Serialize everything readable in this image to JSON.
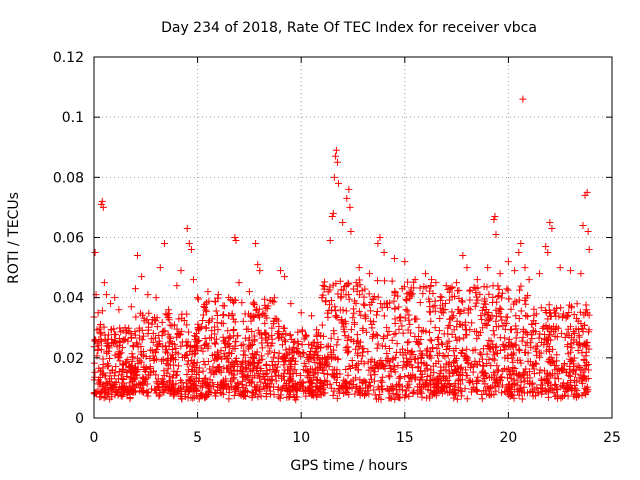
{
  "chart_data": {
    "type": "scatter",
    "title": "Day 234 of 2018, Rate Of TEC Index for receiver vbca",
    "xlabel": "GPS time / hours",
    "ylabel": "ROTI / TECUs",
    "xlim": [
      0,
      25
    ],
    "ylim": [
      0,
      0.12
    ],
    "xticks": [
      0,
      5,
      10,
      15,
      20,
      25
    ],
    "xtick_labels": [
      "0",
      "5",
      "10",
      "15",
      "20",
      "25"
    ],
    "yticks": [
      0,
      0.02,
      0.04,
      0.06,
      0.08,
      0.1,
      0.12
    ],
    "ytick_labels": [
      "0",
      "0.02",
      "0.04",
      "0.06",
      "0.08",
      "0.1",
      "0.12"
    ],
    "grid": true,
    "marker": "+",
    "color": "#ff0000",
    "series": [
      {
        "name": "ROTI",
        "points": [
          [
            0.05,
            0.055
          ],
          [
            0.1,
            0.041
          ],
          [
            0.2,
            0.035
          ],
          [
            0.3,
            0.028
          ],
          [
            0.35,
            0.071
          ],
          [
            0.4,
            0.072
          ],
          [
            0.45,
            0.07
          ],
          [
            0.5,
            0.045
          ],
          [
            0.6,
            0.041
          ],
          [
            0.8,
            0.038
          ],
          [
            1.0,
            0.04
          ],
          [
            1.2,
            0.036
          ],
          [
            1.5,
            0.03
          ],
          [
            1.8,
            0.037
          ],
          [
            2.0,
            0.043
          ],
          [
            2.1,
            0.054
          ],
          [
            2.3,
            0.047
          ],
          [
            2.6,
            0.041
          ],
          [
            3.0,
            0.04
          ],
          [
            3.2,
            0.05
          ],
          [
            3.4,
            0.058
          ],
          [
            3.6,
            0.036
          ],
          [
            4.0,
            0.044
          ],
          [
            4.2,
            0.049
          ],
          [
            4.5,
            0.063
          ],
          [
            4.6,
            0.058
          ],
          [
            4.7,
            0.056
          ],
          [
            4.8,
            0.046
          ],
          [
            5.0,
            0.04
          ],
          [
            5.5,
            0.042
          ],
          [
            6.0,
            0.041
          ],
          [
            6.5,
            0.04
          ],
          [
            6.8,
            0.06
          ],
          [
            6.85,
            0.059
          ],
          [
            7.0,
            0.045
          ],
          [
            7.5,
            0.042
          ],
          [
            7.8,
            0.058
          ],
          [
            7.9,
            0.051
          ],
          [
            8.0,
            0.049
          ],
          [
            8.5,
            0.039
          ],
          [
            9.0,
            0.049
          ],
          [
            9.2,
            0.047
          ],
          [
            9.5,
            0.038
          ],
          [
            10.0,
            0.035
          ],
          [
            10.5,
            0.034
          ],
          [
            11.0,
            0.04
          ],
          [
            11.4,
            0.059
          ],
          [
            11.5,
            0.067
          ],
          [
            11.55,
            0.068
          ],
          [
            11.6,
            0.08
          ],
          [
            11.65,
            0.087
          ],
          [
            11.7,
            0.089
          ],
          [
            11.75,
            0.085
          ],
          [
            11.8,
            0.078
          ],
          [
            12.0,
            0.065
          ],
          [
            12.2,
            0.073
          ],
          [
            12.3,
            0.076
          ],
          [
            12.35,
            0.07
          ],
          [
            12.4,
            0.062
          ],
          [
            12.8,
            0.05
          ],
          [
            13.3,
            0.048
          ],
          [
            13.7,
            0.058
          ],
          [
            13.8,
            0.06
          ],
          [
            14.0,
            0.055
          ],
          [
            14.5,
            0.053
          ],
          [
            15.0,
            0.052
          ],
          [
            15.5,
            0.046
          ],
          [
            16.0,
            0.048
          ],
          [
            16.5,
            0.045
          ],
          [
            17.0,
            0.044
          ],
          [
            17.5,
            0.045
          ],
          [
            17.8,
            0.054
          ],
          [
            18.0,
            0.05
          ],
          [
            18.5,
            0.046
          ],
          [
            19.0,
            0.05
          ],
          [
            19.3,
            0.066
          ],
          [
            19.35,
            0.067
          ],
          [
            19.4,
            0.061
          ],
          [
            19.6,
            0.048
          ],
          [
            20.0,
            0.052
          ],
          [
            20.3,
            0.049
          ],
          [
            20.5,
            0.055
          ],
          [
            20.6,
            0.058
          ],
          [
            20.7,
            0.106
          ],
          [
            20.8,
            0.05
          ],
          [
            21.0,
            0.046
          ],
          [
            21.5,
            0.048
          ],
          [
            21.8,
            0.057
          ],
          [
            21.9,
            0.055
          ],
          [
            22.0,
            0.065
          ],
          [
            22.1,
            0.063
          ],
          [
            22.5,
            0.05
          ],
          [
            23.0,
            0.049
          ],
          [
            23.5,
            0.048
          ],
          [
            23.6,
            0.064
          ],
          [
            23.7,
            0.074
          ],
          [
            23.8,
            0.075
          ],
          [
            23.85,
            0.062
          ],
          [
            23.9,
            0.056
          ]
        ]
      }
    ]
  }
}
